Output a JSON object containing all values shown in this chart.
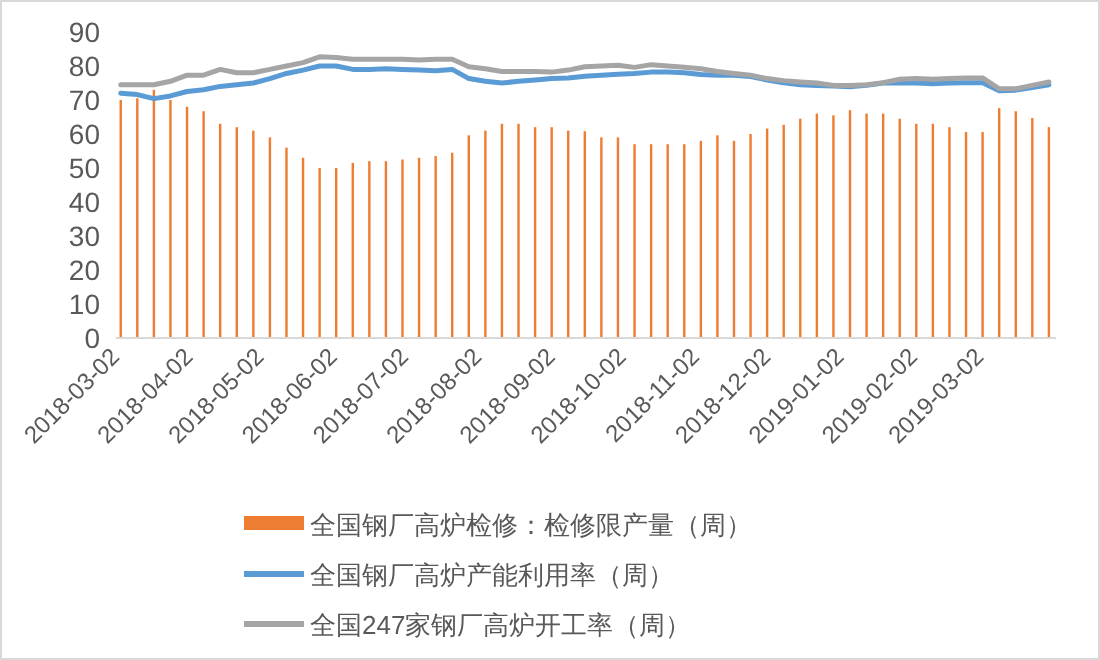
{
  "chart_data": {
    "type": "bar",
    "x": [
      "2018-03-02",
      "2018-03-09",
      "2018-03-16",
      "2018-03-23",
      "2018-03-30",
      "2018-04-06",
      "2018-04-13",
      "2018-04-20",
      "2018-04-27",
      "2018-05-04",
      "2018-05-11",
      "2018-05-18",
      "2018-05-25",
      "2018-06-01",
      "2018-06-08",
      "2018-06-15",
      "2018-06-22",
      "2018-06-29",
      "2018-07-06",
      "2018-07-13",
      "2018-07-20",
      "2018-07-27",
      "2018-08-03",
      "2018-08-10",
      "2018-08-17",
      "2018-08-24",
      "2018-08-31",
      "2018-09-07",
      "2018-09-14",
      "2018-09-21",
      "2018-09-28",
      "2018-10-05",
      "2018-10-12",
      "2018-10-19",
      "2018-10-26",
      "2018-11-02",
      "2018-11-09",
      "2018-11-16",
      "2018-11-23",
      "2018-11-30",
      "2018-12-07",
      "2018-12-14",
      "2018-12-21",
      "2018-12-28",
      "2019-01-04",
      "2019-01-11",
      "2019-01-18",
      "2019-01-25",
      "2019-02-01",
      "2019-02-08",
      "2019-02-15",
      "2019-02-22",
      "2019-03-01",
      "2019-03-08",
      "2019-03-15",
      "2019-03-22",
      "2019-03-29"
    ],
    "series": [
      {
        "name": "全国钢厂高炉检修：检修限产量（周）",
        "color": "#ed7d31",
        "values": [
          70,
          70.5,
          73,
          70,
          68,
          66.7,
          63,
          62,
          61,
          59,
          56,
          53,
          50,
          50,
          51.5,
          52,
          52,
          52.5,
          53,
          53.5,
          54.5,
          59.6,
          61,
          63,
          63,
          62,
          62,
          61,
          60.8,
          59,
          59,
          57,
          57,
          57,
          57,
          58,
          59.6,
          58,
          60,
          61.6,
          62.7,
          64.5,
          66,
          65.5,
          67,
          66,
          66,
          64.5,
          63,
          63,
          62,
          60.6,
          60.6,
          67.6,
          66.7,
          64.7,
          62
        ]
      },
      {
        "name": "全国钢厂高炉产能利用率（周）",
        "type": "line",
        "color": "#5b9bd5",
        "values": [
          72,
          71.6,
          70.4,
          71.2,
          72.5,
          73,
          74,
          74.5,
          75,
          76.3,
          77.8,
          78.8,
          80,
          80,
          79,
          79,
          79.2,
          79,
          78.8,
          78.6,
          79,
          76.3,
          75.5,
          75,
          75.5,
          75.9,
          76.3,
          76.5,
          77,
          77.3,
          77.6,
          77.8,
          78.2,
          78.2,
          78,
          77.5,
          77.3,
          77.3,
          76.9,
          75.9,
          75.1,
          74.5,
          74.3,
          74.1,
          73.9,
          74.3,
          75,
          75.1,
          75,
          74.8,
          75,
          75.1,
          75.1,
          72.7,
          72.9,
          73.7,
          74.5
        ]
      },
      {
        "name": "全国247家钢厂高炉开工率（周）",
        "type": "line",
        "color": "#a5a5a5",
        "values": [
          74.5,
          74.5,
          74.5,
          75.5,
          77.3,
          77.3,
          79,
          78,
          78,
          79,
          80,
          81,
          82.7,
          82.5,
          82,
          82,
          82,
          82,
          81.8,
          82,
          82,
          79.8,
          79.2,
          78.4,
          78.4,
          78.4,
          78.2,
          78.8,
          79.8,
          80,
          80.2,
          79.6,
          80.4,
          80,
          79.6,
          79.2,
          78.4,
          77.8,
          77.3,
          76.3,
          75.7,
          75.3,
          75,
          74.3,
          74.3,
          74.5,
          75.1,
          76.1,
          76.3,
          76.1,
          76.3,
          76.5,
          76.5,
          73.3,
          73.3,
          74.3,
          75.3
        ]
      }
    ],
    "xlim": [
      "2018-02-28",
      "2019-04-01"
    ],
    "xticks": [
      "2018-03-02",
      "2018-04-02",
      "2018-05-02",
      "2018-06-02",
      "2018-07-02",
      "2018-08-02",
      "2018-09-02",
      "2018-10-02",
      "2018-11-02",
      "2018-12-02",
      "2019-01-02",
      "2019-02-02",
      "2019-03-02"
    ],
    "ylim": [
      0,
      90
    ],
    "yticks": [
      0,
      10,
      20,
      30,
      40,
      50,
      60,
      70,
      80,
      90
    ],
    "grid": false,
    "legend": "bottom"
  }
}
